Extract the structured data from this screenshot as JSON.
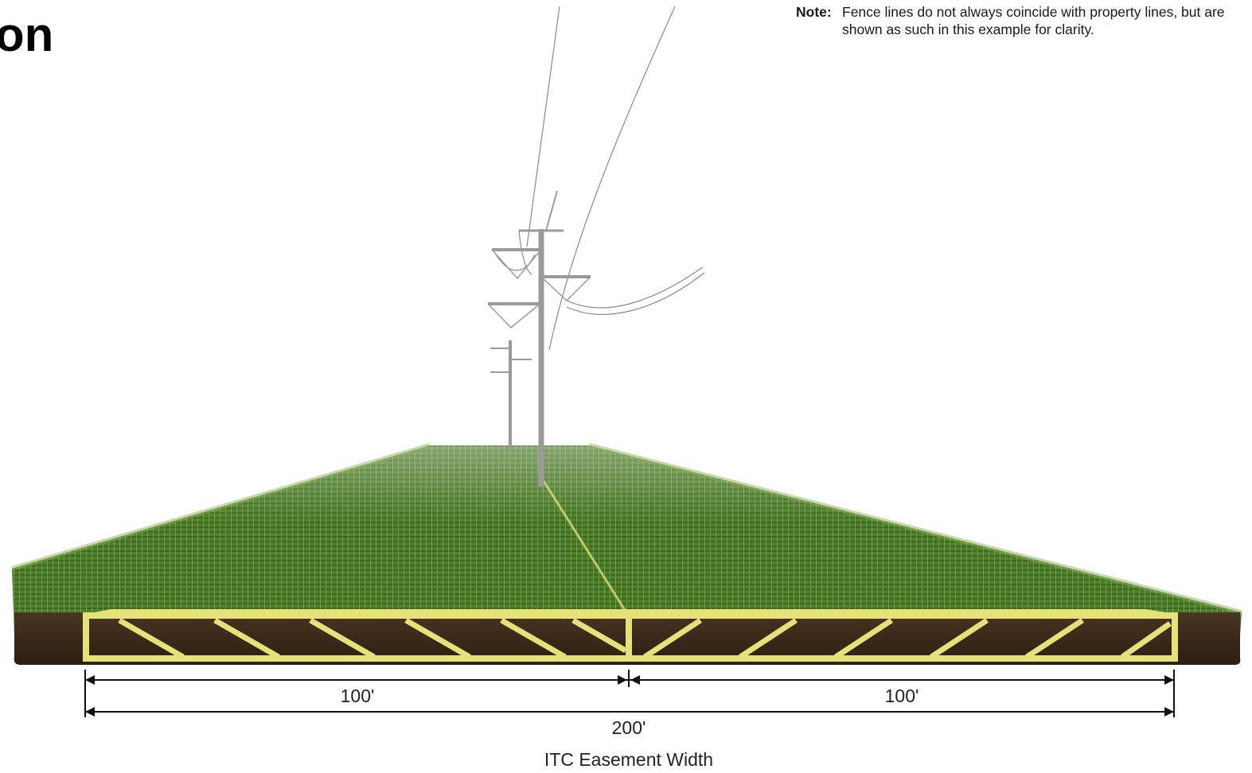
{
  "title_fragment": "on",
  "note": {
    "label": "Note:",
    "text": "Fence lines do not always coincide with property lines, but are shown as such in this example for clarity."
  },
  "dimensions": {
    "left_width": "100'",
    "right_width": "100'",
    "total_width": "200'"
  },
  "caption": "ITC Easement Width",
  "colors": {
    "grass_dark": "#3d6b22",
    "grass_light": "#6f9a3c",
    "soil": "#3b2a1c",
    "easement_outline": "#e5e27a",
    "pole": "#9a9a9a",
    "dimension_line": "#111111"
  },
  "icons": [
    "transmission-pole-icon",
    "dimension-arrow-icon"
  ]
}
